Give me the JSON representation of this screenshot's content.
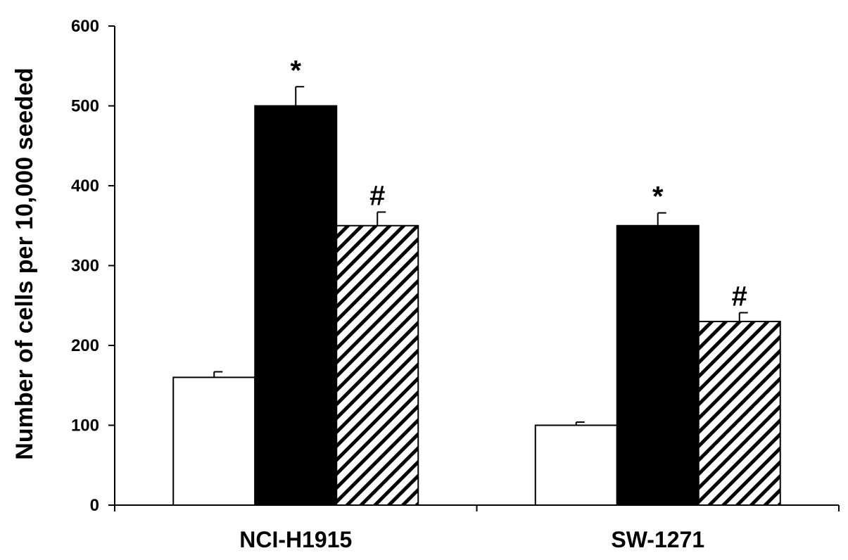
{
  "chart_data": {
    "type": "bar",
    "ylabel": "Number of cells per 10,000 seeded",
    "ylim": [
      0,
      600
    ],
    "yticks": [
      0,
      100,
      200,
      300,
      400,
      500,
      600
    ],
    "grid": false,
    "categories": [
      "NCI-H1915",
      "SW-1271"
    ],
    "series": [
      {
        "fill": "#ffffff",
        "pattern": "none",
        "values": [
          160,
          100
        ],
        "errors": [
          7,
          4
        ],
        "annotations": [
          "",
          ""
        ]
      },
      {
        "fill": "#000000",
        "pattern": "solid",
        "values": [
          500,
          350
        ],
        "errors": [
          24,
          16
        ],
        "annotations": [
          "*",
          "*"
        ]
      },
      {
        "fill": "#ffffff",
        "pattern": "hatch",
        "values": [
          350,
          230
        ],
        "errors": [
          17,
          11
        ],
        "annotations": [
          "#",
          "#"
        ]
      }
    ]
  }
}
